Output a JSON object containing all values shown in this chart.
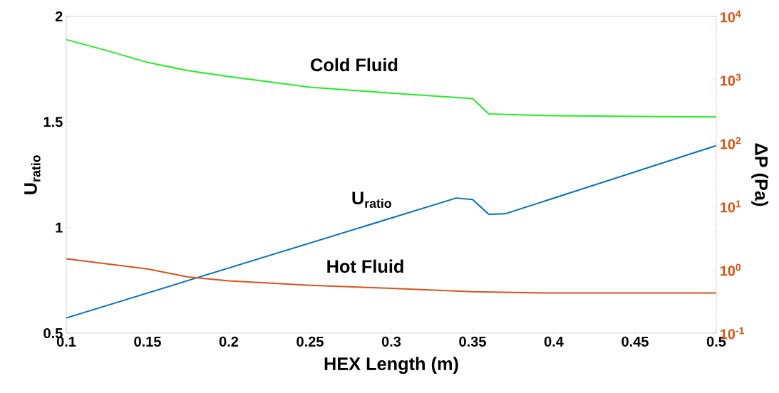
{
  "chart_data": {
    "type": "line",
    "xlabel": "HEX Length (m)",
    "ylabel": "U$_{ratio}$",
    "y2label": "ΔP (Pa)",
    "xlim": [
      0.1,
      0.5
    ],
    "xticks": [
      0.1,
      0.15,
      0.2,
      0.25,
      0.3,
      0.35,
      0.4,
      0.45,
      0.5
    ],
    "ylim": [
      0.5,
      2
    ],
    "yticks": [
      0.5,
      1,
      1.5,
      2
    ],
    "y2lim": [
      0.1,
      10000
    ],
    "log": "y2",
    "y2ticks": [
      {
        "value": 0.1,
        "label": "10$^{-1}$"
      },
      {
        "value": 1,
        "label": "10$^{0}$"
      },
      {
        "value": 10,
        "label": "10$^{1}$"
      },
      {
        "value": 100,
        "label": "10$^{2}$"
      },
      {
        "value": 1000,
        "label": "10$^{3}$"
      },
      {
        "value": 10000,
        "label": "10$^{4}$"
      }
    ],
    "series": [
      {
        "name": "Cold Fluid",
        "color": "#22ee22",
        "axis": "y2",
        "x": [
          0.1,
          0.125,
          0.15,
          0.175,
          0.2,
          0.25,
          0.3,
          0.35,
          0.36,
          0.4,
          0.45,
          0.5
        ],
        "values": [
          4300,
          2880,
          1880,
          1390,
          1120,
          763,
          615,
          505,
          289,
          270,
          263,
          258
        ]
      },
      {
        "name": "U$_{ratio}$",
        "color": "#0072bd",
        "x": [
          0.1,
          0.34,
          0.35,
          0.36,
          0.37,
          0.5
        ],
        "values": [
          0.572,
          1.14,
          1.133,
          1.063,
          1.065,
          1.388
        ]
      },
      {
        "name": "Hot Fluid",
        "color": "#d95319",
        "axis": "y2",
        "x": [
          0.1,
          0.15,
          0.175,
          0.2,
          0.25,
          0.3,
          0.35,
          0.4,
          0.5
        ],
        "values": [
          1.49,
          1.03,
          0.77,
          0.67,
          0.57,
          0.51,
          0.45,
          0.43,
          0.43
        ]
      }
    ]
  }
}
